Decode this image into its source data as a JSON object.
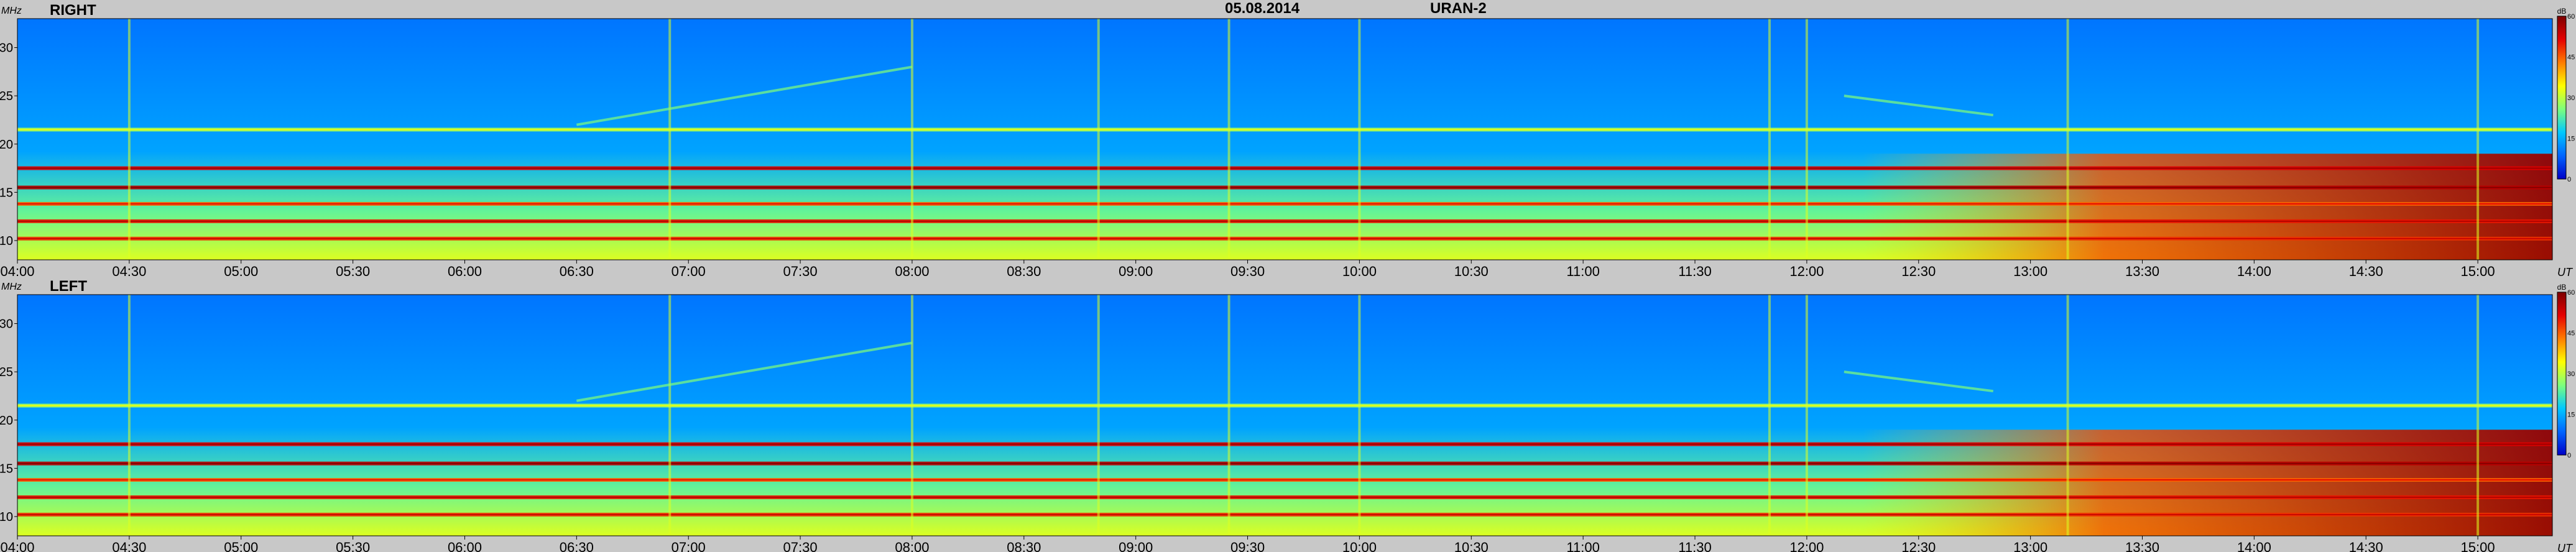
{
  "header": {
    "date": "05.08.2014",
    "instrument": "URAN-2"
  },
  "colorbar": {
    "unit": "dB",
    "ticks": [
      "0",
      "15",
      "30",
      "45",
      "60"
    ],
    "colors": [
      "#0000c8",
      "#0064ff",
      "#00c8ff",
      "#7dff7d",
      "#ffff00",
      "#ff7d00",
      "#e60000",
      "#7d0000"
    ]
  },
  "chart_data": [
    {
      "type": "heatmap",
      "title": "RIGHT",
      "ylabel": "MHz",
      "xlabel": "UT",
      "ylim": [
        8,
        33
      ],
      "x_start": "04:00",
      "x_end": "15:20",
      "xticks": [
        "04:00",
        "04:30",
        "05:00",
        "05:30",
        "06:00",
        "06:30",
        "07:00",
        "07:30",
        "08:00",
        "08:30",
        "09:00",
        "09:30",
        "10:00",
        "10:30",
        "11:00",
        "11:30",
        "12:00",
        "12:30",
        "13:00",
        "13:30",
        "14:00",
        "14:30",
        "15:00"
      ],
      "yticks": [
        "10",
        "15",
        "20",
        "25",
        "30"
      ],
      "zlim": [
        0,
        60
      ],
      "background_level_db": 12,
      "features": {
        "persistent_bands_mhz": [
          {
            "freq": 21.5,
            "level_db": 28
          },
          {
            "freq": 17.5,
            "level_db": 52
          },
          {
            "freq": 15.5,
            "level_db": 55
          },
          {
            "freq": 13.8,
            "level_db": 45
          },
          {
            "freq": 12.0,
            "level_db": 50
          },
          {
            "freq": 10.2,
            "level_db": 48
          }
        ],
        "afternoon_enhancement": {
          "start": "12:15",
          "end": "15:20",
          "peak_level_db": 58
        },
        "vertical_bursts_ut": [
          "04:30",
          "06:55",
          "08:00",
          "08:50",
          "09:25",
          "10:00",
          "11:50",
          "12:00",
          "13:10",
          "15:00"
        ],
        "drifting_features": [
          {
            "t_start": "06:30",
            "t_end": "08:00",
            "f_start": 22,
            "f_end": 28
          },
          {
            "t_start": "12:10",
            "t_end": "12:50",
            "f_start": 25,
            "f_end": 23
          }
        ]
      }
    },
    {
      "type": "heatmap",
      "title": "LEFT",
      "ylabel": "MHz",
      "xlabel": "UT",
      "ylim": [
        8,
        33
      ],
      "x_start": "04:00",
      "x_end": "15:20",
      "xticks": [
        "04:00",
        "04:30",
        "05:00",
        "05:30",
        "06:00",
        "06:30",
        "07:00",
        "07:30",
        "08:00",
        "08:30",
        "09:00",
        "09:30",
        "10:00",
        "10:30",
        "11:00",
        "11:30",
        "12:00",
        "12:30",
        "13:00",
        "13:30",
        "14:00",
        "14:30",
        "15:00"
      ],
      "yticks": [
        "10",
        "15",
        "20",
        "25",
        "30"
      ],
      "zlim": [
        0,
        60
      ],
      "background_level_db": 12,
      "features": {
        "persistent_bands_mhz": [
          {
            "freq": 21.5,
            "level_db": 28
          },
          {
            "freq": 17.5,
            "level_db": 52
          },
          {
            "freq": 15.5,
            "level_db": 55
          },
          {
            "freq": 13.8,
            "level_db": 45
          },
          {
            "freq": 12.0,
            "level_db": 50
          },
          {
            "freq": 10.2,
            "level_db": 48
          }
        ],
        "afternoon_enhancement": {
          "start": "12:15",
          "end": "15:20",
          "peak_level_db": 58
        },
        "vertical_bursts_ut": [
          "04:30",
          "06:55",
          "08:00",
          "08:50",
          "09:25",
          "10:00",
          "11:50",
          "12:00",
          "13:10",
          "15:00"
        ],
        "drifting_features": [
          {
            "t_start": "06:30",
            "t_end": "08:00",
            "f_start": 22,
            "f_end": 28
          },
          {
            "t_start": "12:10",
            "t_end": "12:50",
            "f_start": 25,
            "f_end": 23
          }
        ]
      }
    }
  ]
}
